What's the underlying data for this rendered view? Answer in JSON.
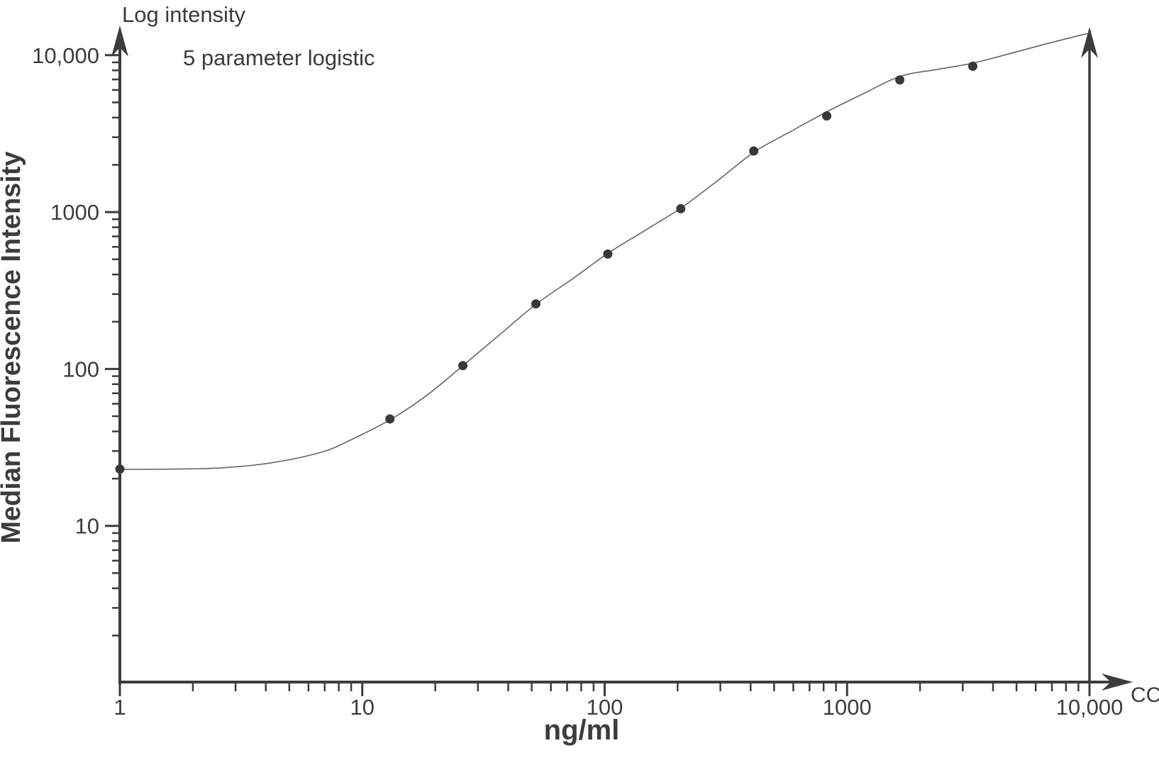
{
  "chart_data": {
    "type": "scatter",
    "title": "5 parameter logistic",
    "top_axis_label": "Log intensity",
    "xlabel": "ng/ml",
    "ylabel": "Median Fluorescence Intensity",
    "right_axis_label": "CC",
    "x_scale": "log",
    "y_scale": "log",
    "x_range": [
      1,
      10000
    ],
    "y_range": [
      1,
      20000
    ],
    "x_ticks": [
      {
        "label": "1",
        "value": 1
      },
      {
        "label": "10",
        "value": 10
      },
      {
        "label": "100",
        "value": 100
      },
      {
        "label": "1000",
        "value": 1000
      },
      {
        "label": "10,000",
        "value": 10000
      }
    ],
    "y_ticks": [
      {
        "label": "10",
        "value": 10
      },
      {
        "label": "100",
        "value": 100
      },
      {
        "label": "1000",
        "value": 1000
      },
      {
        "label": "10,000",
        "value": 10000
      }
    ],
    "minor_tick_decades": [
      0,
      1,
      2,
      3
    ],
    "grid": false,
    "legend": "none",
    "points": [
      {
        "x": 1,
        "y": 23
      },
      {
        "x": 13,
        "y": 48
      },
      {
        "x": 26,
        "y": 105
      },
      {
        "x": 52,
        "y": 260
      },
      {
        "x": 103,
        "y": 540
      },
      {
        "x": 206,
        "y": 1050
      },
      {
        "x": 412,
        "y": 2450
      },
      {
        "x": 824,
        "y": 4100
      },
      {
        "x": 1650,
        "y": 6950
      },
      {
        "x": 3300,
        "y": 8500
      }
    ],
    "fit_curve": [
      [
        1,
        22.9
      ],
      [
        1.6,
        23.0
      ],
      [
        2.6,
        23.4
      ],
      [
        4.2,
        25.2
      ],
      [
        6.8,
        29.5
      ],
      [
        9.2,
        36
      ],
      [
        13.2,
        48
      ],
      [
        18.7,
        69
      ],
      [
        26,
        105
      ],
      [
        37,
        166
      ],
      [
        52,
        258
      ],
      [
        74,
        377
      ],
      [
        103,
        545
      ],
      [
        148,
        770
      ],
      [
        208,
        1070
      ],
      [
        293,
        1590
      ],
      [
        415,
        2420
      ],
      [
        585,
        3260
      ],
      [
        828,
        4370
      ],
      [
        1175,
        5710
      ],
      [
        1655,
        7330
      ],
      [
        2340,
        8100
      ],
      [
        3310,
        8900
      ],
      [
        4660,
        10200
      ],
      [
        6620,
        11800
      ],
      [
        9360,
        13500
      ],
      [
        10000,
        13800
      ]
    ]
  },
  "colors": {
    "background": "#ffffff",
    "axis": "#3c3c3c",
    "text": "#3c3c3c",
    "point": "#383838",
    "curve": "#5c5c5c"
  }
}
